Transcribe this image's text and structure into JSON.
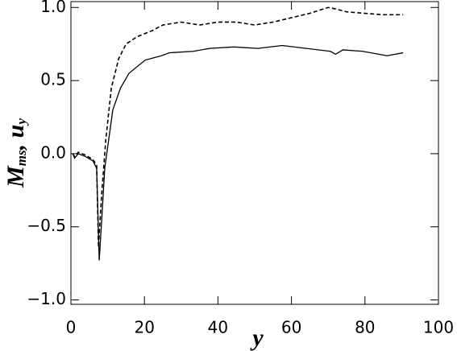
{
  "chart_data": {
    "type": "line",
    "xlabel": "y",
    "ylabel": [
      "M",
      "ms",
      ", ",
      "u",
      "y"
    ],
    "xlim": [
      0,
      100
    ],
    "xticks": [
      0,
      20,
      40,
      60,
      80,
      100
    ],
    "ylim": [
      -1.03,
      1.04
    ],
    "yticks": [
      {
        "value": -1.0,
        "label": "−1.0"
      },
      {
        "value": -0.5,
        "label": "−0.5"
      },
      {
        "value": 0.0,
        "label": "0.0"
      },
      {
        "value": 0.5,
        "label": "0.5"
      },
      {
        "value": 1.0,
        "label": "1.0"
      }
    ],
    "series": [
      {
        "color": "#000000",
        "dash": false,
        "x": [
          0.5,
          1,
          2,
          4,
          6,
          7,
          7.7,
          8.5,
          9.2,
          11.4,
          13.5,
          15.8,
          20.2,
          24.6,
          26.8,
          33.3,
          37.7,
          44.3,
          50.9,
          57.5,
          64,
          70.6,
          72,
          74,
          79.4,
          86,
          90.4
        ],
        "values": [
          0.0,
          -0.03,
          0.0,
          -0.02,
          -0.05,
          -0.1,
          -0.73,
          -0.4,
          -0.1,
          0.3,
          0.45,
          0.55,
          0.64,
          0.67,
          0.69,
          0.7,
          0.72,
          0.73,
          0.72,
          0.74,
          0.72,
          0.7,
          0.68,
          0.71,
          0.7,
          0.67,
          0.69
        ]
      },
      {
        "color": "#000000",
        "dash": true,
        "x": [
          0.5,
          1,
          2,
          4,
          6,
          7,
          7.5,
          8.3,
          9.5,
          11,
          13,
          15,
          18,
          22,
          25,
          30,
          35,
          40,
          45,
          50,
          55,
          60,
          65,
          70,
          72,
          75,
          80,
          85,
          90.4
        ],
        "values": [
          0.0,
          -0.02,
          0.01,
          -0.01,
          -0.04,
          -0.08,
          -0.64,
          -0.3,
          0.1,
          0.45,
          0.65,
          0.75,
          0.8,
          0.84,
          0.88,
          0.9,
          0.88,
          0.9,
          0.9,
          0.88,
          0.9,
          0.93,
          0.96,
          1.0,
          0.99,
          0.97,
          0.96,
          0.95,
          0.95
        ]
      }
    ]
  }
}
